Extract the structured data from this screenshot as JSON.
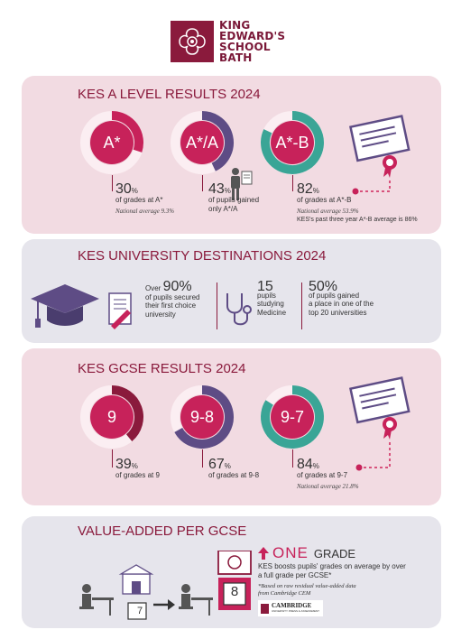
{
  "logo": {
    "lines": [
      "KING",
      "EDWARD'S",
      "SCHOOL",
      "BATH"
    ]
  },
  "a_level": {
    "title_main": "KES A LEVEL RESULTS 2024",
    "grades": [
      {
        "label": "A*",
        "pct": "30",
        "pct_sign": "%",
        "desc": "of grades at A*",
        "note": "National average 9.3%",
        "fraction": 0.3
      },
      {
        "label": "A*/A",
        "pct": "43",
        "pct_sign": "%",
        "desc": "of pupils gained",
        "desc2": "only A*/A",
        "fraction": 0.43
      },
      {
        "label": "A*-B",
        "pct": "82",
        "pct_sign": "%",
        "desc": "of grades at A*-B",
        "note": "National average 53.9%",
        "extra": "KES's past three year A*-B average is 86%",
        "fraction": 0.82
      }
    ]
  },
  "university": {
    "title": "KES UNIVERSITY DESTINATIONS 2024",
    "items": [
      {
        "prefix": "Over ",
        "num": "90%",
        "lines": [
          "of pupils secured",
          "their first choice",
          "university"
        ]
      },
      {
        "num": "15",
        "lines": [
          "pupils",
          "studying",
          "Medicine"
        ]
      },
      {
        "num": "50%",
        "lines": [
          "of pupils gained",
          "a place in one of the",
          "top 20 universities"
        ]
      }
    ]
  },
  "gcse": {
    "title": "KES GCSE RESULTS 2024",
    "grades": [
      {
        "label": "9",
        "pct": "39",
        "pct_sign": "%",
        "desc": "of grades at 9",
        "fraction": 0.39
      },
      {
        "label": "9-8",
        "pct": "67",
        "pct_sign": "%",
        "desc": "of grades at 9-8",
        "fraction": 0.67
      },
      {
        "label": "9-7",
        "pct": "84",
        "pct_sign": "%",
        "desc": "of grades at 9-7",
        "note": "National average 21.8%",
        "fraction": 0.84
      }
    ]
  },
  "value_added": {
    "title": "VALUE-ADDED PER GCSE",
    "one": "ONE",
    "grade": "GRADE",
    "text": [
      "KES boosts pupils' grades on average by over",
      "a full grade per GCSE*"
    ],
    "note": [
      "*Based on raw residual value-added data",
      "from Cambridge CEM"
    ],
    "cambridge": "CAMBRIDGE",
    "cambridge_sub": "UNIVERSITY PRESS & ASSESSMENT",
    "before_grade": "7",
    "after_grade": "8"
  },
  "colors": {
    "maroon": "#8a1a3c",
    "pink": "#c7225a",
    "purple": "#5e4c85",
    "teal": "#3aa596",
    "panel_pink": "#f2dbe2",
    "panel_grey": "#e6e5ec"
  }
}
